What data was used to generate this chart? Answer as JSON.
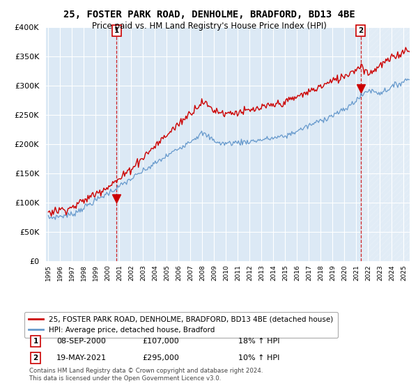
{
  "title": "25, FOSTER PARK ROAD, DENHOLME, BRADFORD, BD13 4BE",
  "subtitle": "Price paid vs. HM Land Registry's House Price Index (HPI)",
  "property_label": "25, FOSTER PARK ROAD, DENHOLME, BRADFORD, BD13 4BE (detached house)",
  "hpi_label": "HPI: Average price, detached house, Bradford",
  "footnote": "Contains HM Land Registry data © Crown copyright and database right 2024.\nThis data is licensed under the Open Government Licence v3.0.",
  "sale1_date": "08-SEP-2000",
  "sale1_price": 107000,
  "sale1_info": "18% ↑ HPI",
  "sale2_date": "19-MAY-2021",
  "sale2_price": 295000,
  "sale2_info": "10% ↑ HPI",
  "ylim": [
    0,
    400000
  ],
  "yticks": [
    0,
    50000,
    100000,
    150000,
    200000,
    250000,
    300000,
    350000,
    400000
  ],
  "line_color_property": "#cc0000",
  "line_color_hpi": "#6699cc",
  "marker_color_property": "#cc0000",
  "bg_color": "#ffffff",
  "plot_bg_color": "#dce9f5",
  "grid_color": "#ffffff",
  "title_fontsize": 10,
  "subtitle_fontsize": 8.5,
  "sale1_x": 2000.75,
  "sale2_x": 2021.38
}
